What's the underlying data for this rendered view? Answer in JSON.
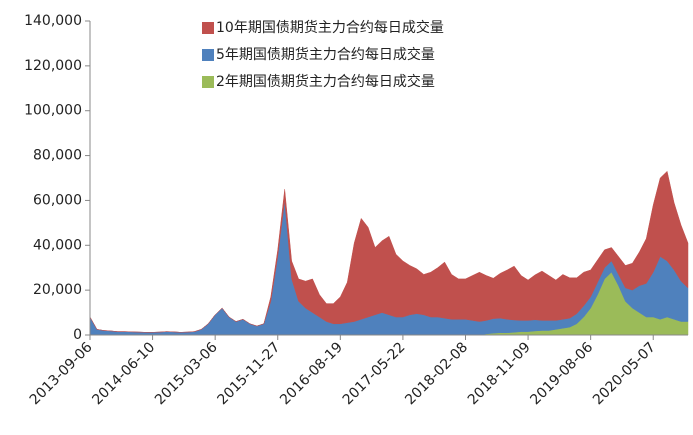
{
  "chart_data": {
    "type": "stacked_area",
    "categories": [
      "2013-09-06",
      null,
      null,
      null,
      null,
      null,
      null,
      null,
      null,
      "2014-06-10",
      null,
      null,
      null,
      null,
      null,
      null,
      null,
      null,
      "2015-03-06",
      null,
      null,
      null,
      null,
      null,
      null,
      null,
      null,
      "2015-11-27",
      null,
      null,
      null,
      null,
      null,
      null,
      null,
      null,
      "2016-08-19",
      null,
      null,
      null,
      null,
      null,
      null,
      null,
      null,
      "2017-05-22",
      null,
      null,
      null,
      null,
      null,
      null,
      null,
      null,
      "2018-02-08",
      null,
      null,
      null,
      null,
      null,
      null,
      null,
      null,
      "2018-11-09",
      null,
      null,
      null,
      null,
      null,
      null,
      null,
      null,
      "2019-08-06",
      null,
      null,
      null,
      null,
      null,
      null,
      null,
      null,
      "2020-05-07",
      null,
      null,
      null,
      null,
      null
    ],
    "series": [
      {
        "name": "2年期国债期货主力合约每日成交量",
        "color": "#9bbb59",
        "values": [
          0,
          0,
          0,
          0,
          0,
          0,
          0,
          0,
          0,
          0,
          0,
          0,
          0,
          0,
          0,
          0,
          0,
          0,
          0,
          0,
          0,
          0,
          0,
          0,
          0,
          0,
          0,
          0,
          0,
          0,
          0,
          0,
          0,
          0,
          0,
          0,
          0,
          0,
          0,
          0,
          0,
          0,
          0,
          0,
          0,
          0,
          0,
          0,
          0,
          0,
          0,
          0,
          0,
          0,
          0,
          0,
          0,
          500,
          800,
          1000,
          1000,
          1200,
          1500,
          1500,
          1800,
          2000,
          2000,
          2500,
          3000,
          3500,
          5000,
          8000,
          12000,
          18000,
          25000,
          28000,
          22000,
          15000,
          12000,
          10000,
          8000,
          8000,
          7000,
          8000,
          7000,
          6000,
          6000
        ]
      },
      {
        "name": "5年期国债期货主力合约每日成交量",
        "color": "#4f81bd",
        "values": [
          8000,
          2500,
          2000,
          1800,
          1500,
          1500,
          1400,
          1300,
          1200,
          1200,
          1300,
          1500,
          1400,
          1200,
          1300,
          1500,
          2500,
          5000,
          9000,
          12000,
          8000,
          6000,
          7000,
          5000,
          4000,
          5000,
          15000,
          35000,
          60000,
          25000,
          15000,
          12000,
          10000,
          8000,
          6000,
          5000,
          5000,
          5500,
          6000,
          7000,
          8000,
          9000,
          10000,
          9000,
          8000,
          8000,
          9000,
          9500,
          9000,
          8000,
          8000,
          7500,
          7000,
          7000,
          7000,
          6500,
          6000,
          6000,
          6500,
          6500,
          6000,
          5500,
          5000,
          5000,
          5000,
          4500,
          4500,
          4000,
          4000,
          4000,
          4500,
          5000,
          5000,
          5500,
          5000,
          5000,
          5000,
          6000,
          8000,
          12000,
          15000,
          20000,
          28000,
          25000,
          22000,
          18000,
          15000
        ]
      },
      {
        "name": "10年期国债期货主力合约每日成交量",
        "color": "#c0504d",
        "values": [
          0,
          0,
          0,
          0,
          0,
          0,
          0,
          0,
          0,
          0,
          0,
          0,
          0,
          0,
          0,
          0,
          0,
          0,
          0,
          0,
          0,
          0,
          0,
          0,
          0,
          0,
          2000,
          3000,
          5000,
          8000,
          10000,
          12000,
          15000,
          10000,
          8000,
          9000,
          12000,
          18000,
          35000,
          45000,
          40000,
          30000,
          32000,
          35000,
          28000,
          25000,
          22000,
          20000,
          18000,
          20000,
          22000,
          25000,
          20000,
          18000,
          18000,
          20000,
          22000,
          20000,
          18000,
          20000,
          22000,
          24000,
          20000,
          18000,
          20000,
          22000,
          20000,
          18000,
          20000,
          18000,
          16000,
          15000,
          12000,
          10000,
          8000,
          6000,
          8000,
          10000,
          12000,
          15000,
          20000,
          30000,
          35000,
          40000,
          30000,
          25000,
          20000
        ]
      }
    ],
    "ylim": [
      0,
      140000
    ],
    "yticks": [
      0,
      {
        "value": 20000,
        "label": "20,000"
      },
      {
        "value": 40000,
        "label": "40,000"
      },
      {
        "value": 60000,
        "label": "60,000"
      },
      {
        "value": 80000,
        "label": "80,000"
      },
      {
        "value": 100000,
        "label": "100,000"
      },
      {
        "value": 120000,
        "label": "120,000"
      },
      {
        "value": 140000,
        "label": "140,000"
      }
    ],
    "grid": false
  }
}
